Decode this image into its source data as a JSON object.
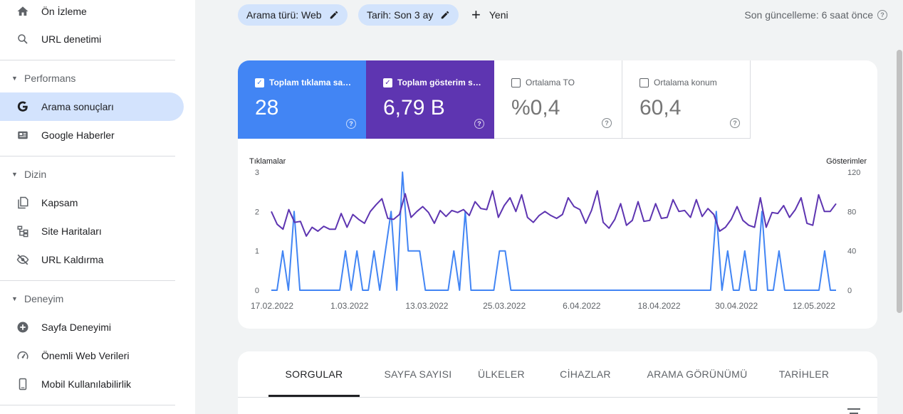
{
  "sidebar": {
    "items": [
      {
        "label": "Ön İzleme",
        "icon": "home-icon"
      },
      {
        "label": "URL denetimi",
        "icon": "search-icon"
      }
    ],
    "sections": [
      {
        "title": "Performans",
        "items": [
          {
            "label": "Arama sonuçları",
            "icon": "google-g-icon",
            "active": true
          },
          {
            "label": "Google Haberler",
            "icon": "news-icon"
          }
        ]
      },
      {
        "title": "Dizin",
        "items": [
          {
            "label": "Kapsam",
            "icon": "coverage-icon"
          },
          {
            "label": "Site Haritaları",
            "icon": "sitemap-icon"
          },
          {
            "label": "URL Kaldırma",
            "icon": "eye-off-icon"
          }
        ]
      },
      {
        "title": "Deneyim",
        "items": [
          {
            "label": "Sayfa Deneyimi",
            "icon": "plus-circle-icon"
          },
          {
            "label": "Önemli Web Verileri",
            "icon": "speedometer-icon"
          },
          {
            "label": "Mobil Kullanılabilirlik",
            "icon": "smartphone-icon"
          }
        ]
      }
    ]
  },
  "filters": {
    "search_type": "Arama türü: Web",
    "date": "Tarih: Son 3 ay",
    "new_label": "Yeni"
  },
  "last_update": "Son güncelleme: 6 saat önce",
  "metrics": [
    {
      "label": "Toplam tıklama sayısı",
      "value": "28",
      "checked": true,
      "color": "#4285f4"
    },
    {
      "label": "Toplam gösterim sayısı",
      "value": "6,79 B",
      "checked": true,
      "color": "#5e35b1"
    },
    {
      "label": "Ortalama TO",
      "value": "%0,4",
      "checked": false
    },
    {
      "label": "Ortalama konum",
      "value": "60,4",
      "checked": false
    }
  ],
  "chart_data": {
    "type": "line",
    "x_labels": [
      "17.02.2022",
      "1.03.2022",
      "13.03.2022",
      "25.03.2022",
      "6.04.2022",
      "18.04.2022",
      "30.04.2022",
      "12.05.2022"
    ],
    "left_axis": {
      "label": "Tıklamalar",
      "ticks": [
        "3",
        "2",
        "1",
        "0"
      ],
      "ylim": [
        0,
        3
      ]
    },
    "right_axis": {
      "label": "Gösterimler",
      "ticks": [
        "120",
        "80",
        "40",
        "0"
      ],
      "ylim": [
        0,
        120
      ]
    },
    "grid": false,
    "series": [
      {
        "name": "Tıklamalar",
        "axis": "left",
        "color": "#4285f4",
        "values": [
          0,
          0,
          1,
          0,
          2,
          0,
          0,
          0,
          0,
          0,
          0,
          0,
          0,
          1,
          0,
          1,
          0,
          0,
          1,
          0,
          1,
          2,
          0,
          3,
          1,
          1,
          1,
          0,
          0,
          0,
          0,
          0,
          1,
          0,
          2,
          0,
          0,
          0,
          0,
          0,
          1,
          1,
          0,
          0,
          0,
          0,
          0,
          0,
          0,
          0,
          0,
          0,
          0,
          0,
          0,
          0,
          0,
          0,
          0,
          0,
          0,
          0,
          0,
          0,
          0,
          0,
          0,
          0,
          0,
          0,
          0,
          0,
          0,
          0,
          0,
          0,
          0,
          0,
          2,
          0,
          1,
          0,
          0,
          1,
          0,
          0,
          2,
          0,
          0,
          1,
          0,
          0,
          0,
          0,
          0,
          0,
          0,
          1,
          0,
          0
        ]
      },
      {
        "name": "Gösterimler",
        "axis": "right",
        "color": "#5e35b1",
        "values": [
          80,
          67,
          62,
          82,
          69,
          70,
          55,
          64,
          60,
          65,
          62,
          62,
          78,
          64,
          77,
          72,
          68,
          80,
          87,
          93,
          73,
          72,
          77,
          98,
          74,
          80,
          85,
          79,
          68,
          81,
          75,
          81,
          79,
          82,
          76,
          90,
          83,
          82,
          101,
          74,
          86,
          94,
          80,
          97,
          74,
          69,
          76,
          80,
          76,
          73,
          77,
          94,
          85,
          82,
          68,
          81,
          101,
          69,
          63,
          72,
          88,
          66,
          71,
          90,
          70,
          71,
          88,
          73,
          74,
          92,
          80,
          81,
          74,
          92,
          75,
          83,
          77,
          60,
          64,
          72,
          85,
          71,
          66,
          64,
          94,
          64,
          79,
          78,
          86,
          74,
          82,
          94,
          68,
          66,
          97,
          80,
          80,
          88
        ]
      }
    ]
  },
  "tabs": [
    "SORGULAR",
    "SAYFA SAYISI",
    "ÜLKELER",
    "CİHAZLAR",
    "ARAMA GÖRÜNÜMÜ",
    "TARİHLER"
  ]
}
